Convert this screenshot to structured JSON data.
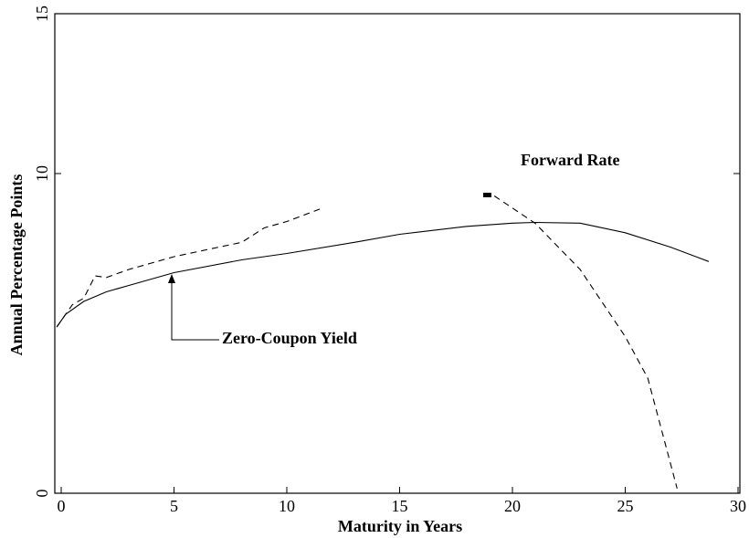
{
  "chart_data": {
    "type": "line",
    "xlabel": "Maturity in Years",
    "ylabel": "Annual Percentage Points",
    "xlim": [
      0,
      30
    ],
    "ylim": [
      0,
      15
    ],
    "xticks": [
      0,
      5,
      10,
      15,
      20,
      25,
      30
    ],
    "yticks": [
      0,
      10,
      15
    ],
    "series": [
      {
        "name": "Zero-Coupon Yield",
        "color": "#000",
        "dash": false,
        "x": [
          -0.2,
          0.2,
          1,
          2,
          3,
          5,
          8,
          10,
          13,
          15,
          18,
          20,
          21,
          23,
          25,
          27,
          28.7
        ],
        "values": [
          5.2,
          5.6,
          6.0,
          6.3,
          6.5,
          6.9,
          7.3,
          7.5,
          7.85,
          8.1,
          8.35,
          8.45,
          8.47,
          8.45,
          8.15,
          7.7,
          7.25
        ]
      },
      {
        "name": "Forward Rate",
        "color": "#000",
        "dash": true,
        "x": [
          -0.2,
          0.5,
          1,
          1.5,
          2,
          3,
          4,
          5,
          7,
          8,
          9,
          10,
          11.5,
          null,
          19.2,
          21,
          23,
          25,
          26,
          27.3
        ],
        "values": [
          5.2,
          5.9,
          6.1,
          6.8,
          6.75,
          7.0,
          7.2,
          7.4,
          7.7,
          7.85,
          8.3,
          8.5,
          8.9,
          null,
          9.3,
          8.45,
          7.0,
          4.9,
          3.6,
          0.15
        ]
      }
    ],
    "annotations": [
      "Forward Rate",
      "Zero-Coupon Yield"
    ]
  }
}
